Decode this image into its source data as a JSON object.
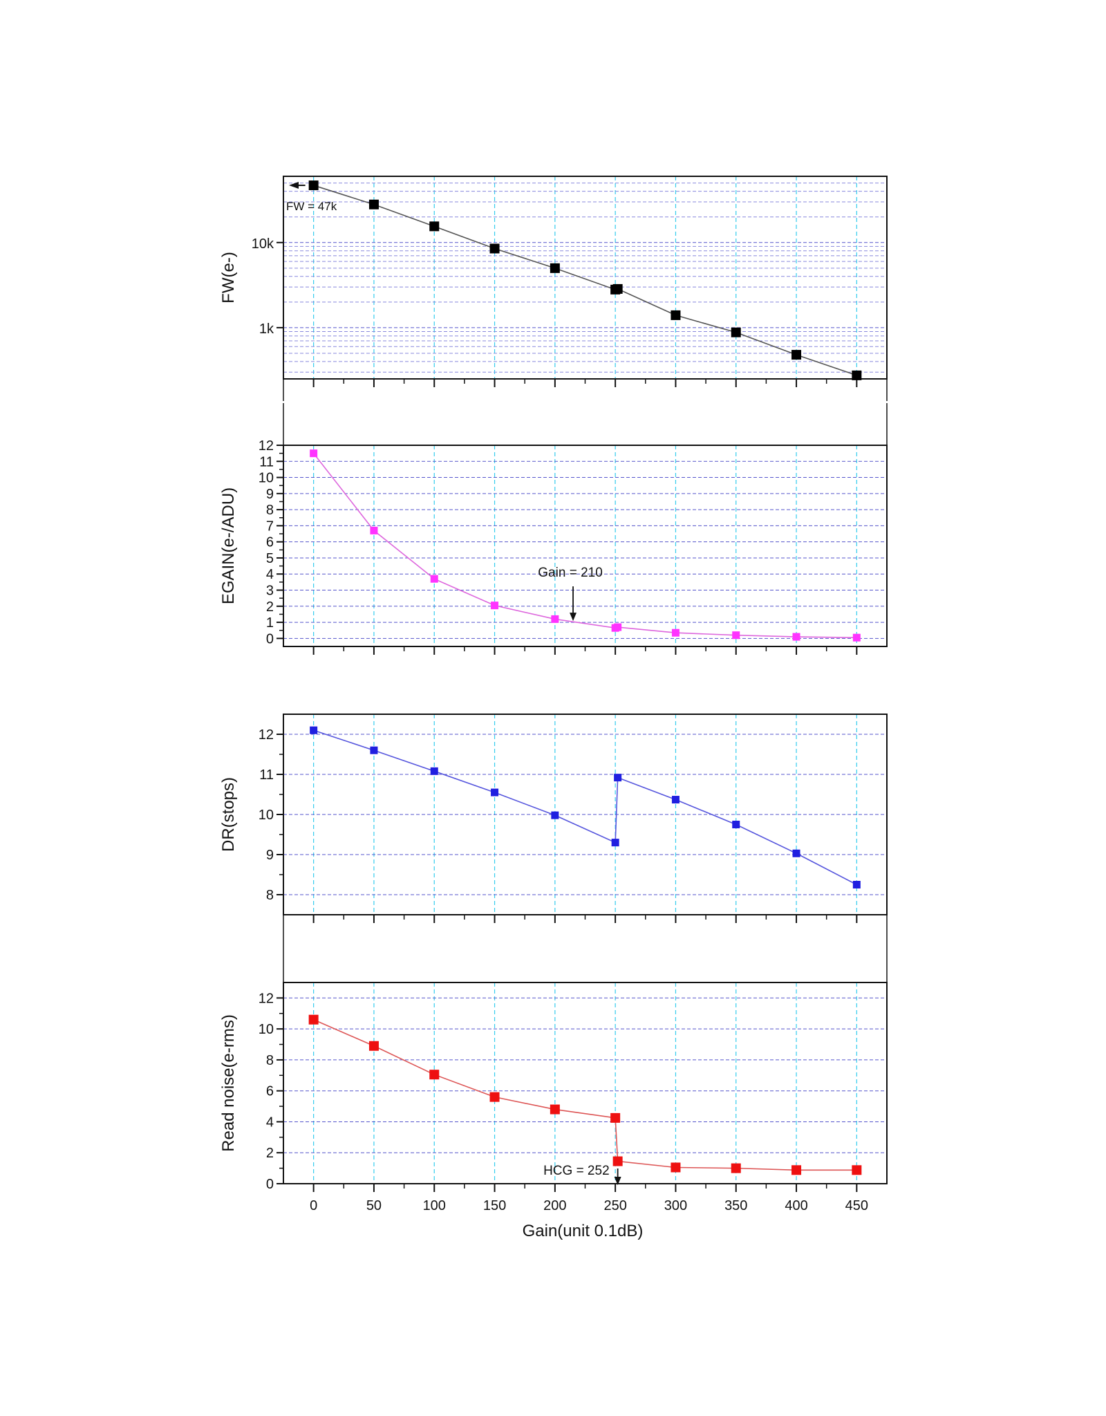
{
  "xaxis": {
    "label": "Gain(unit 0.1dB)",
    "ticks": [
      0,
      50,
      100,
      150,
      200,
      250,
      300,
      350,
      400,
      450
    ],
    "range": [
      -25,
      475
    ]
  },
  "colors": {
    "fw": "#000000",
    "egain": "#ff33ff",
    "dr": "#1f1fe0",
    "rn": "#ee1111",
    "grid_major": "#5555cc",
    "grid_minor": "#8888dd",
    "grid_vertical": "#33ccee",
    "fw_line": "#555555",
    "egain_line": "#dd66dd",
    "dr_line": "#5555dd",
    "rn_line": "#dd5555"
  },
  "chart_data": [
    {
      "type": "scatter",
      "panel": "fw",
      "ylabel": "FW(e-)",
      "yscale": "log",
      "ylim": [
        250,
        60000
      ],
      "yticks": [
        {
          "value": 1000,
          "label": "1k"
        },
        {
          "value": 10000,
          "label": "10k"
        }
      ],
      "x": [
        0,
        50,
        100,
        150,
        200,
        250,
        252,
        300,
        350,
        400,
        450
      ],
      "values": [
        47000,
        28000,
        15500,
        8500,
        5000,
        2800,
        2850,
        1400,
        880,
        480,
        275
      ],
      "annotation": {
        "text": "FW = 47k",
        "x": 0,
        "y": 47000
      }
    },
    {
      "type": "scatter",
      "panel": "egain",
      "ylabel": "EGAIN(e-/ADU)",
      "ylim": [
        -0.5,
        12
      ],
      "yticks": [
        0,
        1,
        2,
        3,
        4,
        5,
        6,
        7,
        8,
        9,
        10,
        11,
        12
      ],
      "x": [
        0,
        50,
        100,
        150,
        200,
        250,
        252,
        300,
        350,
        400,
        450
      ],
      "values": [
        11.5,
        6.7,
        3.7,
        2.05,
        1.2,
        0.65,
        0.7,
        0.35,
        0.2,
        0.1,
        0.05
      ],
      "annotation": {
        "text": "Gain = 210",
        "x": 215,
        "y": 1.0
      }
    },
    {
      "type": "scatter",
      "panel": "dr",
      "ylabel": "DR(stops)",
      "ylim": [
        7.5,
        12.5
      ],
      "yticks": [
        8,
        9,
        10,
        11,
        12
      ],
      "x": [
        0,
        50,
        100,
        150,
        200,
        250,
        252,
        300,
        350,
        400,
        450
      ],
      "values": [
        12.1,
        11.6,
        11.08,
        10.55,
        9.98,
        9.3,
        10.92,
        10.37,
        9.75,
        9.03,
        8.25
      ]
    },
    {
      "type": "scatter",
      "panel": "rn",
      "ylabel": "Read noise(e-rms)",
      "ylim": [
        0,
        13
      ],
      "yticks": [
        0,
        2,
        4,
        6,
        8,
        10,
        12
      ],
      "x": [
        0,
        50,
        100,
        150,
        200,
        250,
        252,
        300,
        350,
        400,
        450
      ],
      "values": [
        10.6,
        8.9,
        7.05,
        5.6,
        4.8,
        4.25,
        1.45,
        1.05,
        1.0,
        0.88,
        0.88
      ],
      "annotation": {
        "text": "HCG = 252",
        "x": 252,
        "y": 0
      }
    }
  ]
}
